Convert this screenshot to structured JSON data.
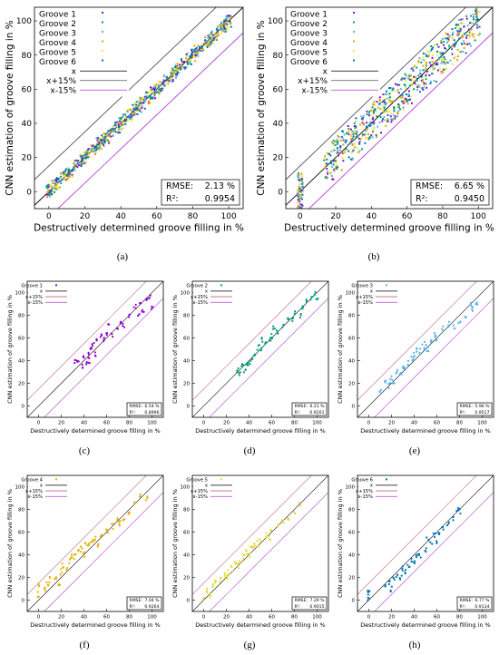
{
  "chart_data": [
    {
      "panel": "(a)",
      "type": "scatter",
      "xlabel": "Destructively determined groove filling in %",
      "ylabel": "CNN estimation of groove filling in %",
      "xlim": [
        -8,
        108
      ],
      "ylim": [
        -10,
        108
      ],
      "xticks": [
        "0",
        "20",
        "40",
        "60",
        "80",
        "100"
      ],
      "yticks": [
        "0",
        "20",
        "40",
        "60",
        "80",
        "100"
      ],
      "grid": false,
      "legend_position": "top-left",
      "series": [
        {
          "name": "Groove 1",
          "color": "#9400d3",
          "kind": "points"
        },
        {
          "name": "Groove 2",
          "color": "#009e73",
          "kind": "points"
        },
        {
          "name": "Groove 3",
          "color": "#56b4e9",
          "kind": "points"
        },
        {
          "name": "Groove 4",
          "color": "#e69f00",
          "kind": "points"
        },
        {
          "name": "Groove 5",
          "color": "#f0e442",
          "kind": "points"
        },
        {
          "name": "Groove 6",
          "color": "#0072b2",
          "kind": "points"
        },
        {
          "name": "x",
          "color": "#000000",
          "kind": "line",
          "offset": 0
        },
        {
          "name": "x+15%",
          "color": "#555555",
          "kind": "line",
          "offset": 15
        },
        {
          "name": "x-15%",
          "color": "#b040d0",
          "kind": "line",
          "offset": -15
        }
      ],
      "spread": 3.5,
      "x": [
        0,
        1,
        3,
        5,
        8,
        10,
        12,
        15,
        18,
        20,
        22,
        25,
        28,
        30,
        32,
        35,
        38,
        40,
        42,
        45,
        48,
        50,
        52,
        55,
        58,
        60,
        62,
        65,
        68,
        70,
        72,
        75,
        78,
        80,
        82,
        85,
        88,
        90,
        92,
        95,
        97,
        98,
        100
      ],
      "stats": {
        "rmse_label": "RMSE:",
        "rmse": "2.13 %",
        "r2_label": "R²:",
        "r2": "0.9954"
      }
    },
    {
      "panel": "(b)",
      "type": "scatter",
      "xlabel": "Destructively determined groove filling in %",
      "ylabel": "CNN estimation of groove filling in %",
      "xlim": [
        -8,
        108
      ],
      "ylim": [
        -10,
        108
      ],
      "xticks": [
        "0",
        "20",
        "40",
        "60",
        "80",
        "100"
      ],
      "yticks": [
        "0",
        "20",
        "40",
        "60",
        "80",
        "100"
      ],
      "grid": false,
      "legend_position": "top-left",
      "series": [
        {
          "name": "Groove 1",
          "color": "#9400d3",
          "kind": "points"
        },
        {
          "name": "Groove 2",
          "color": "#009e73",
          "kind": "points"
        },
        {
          "name": "Groove 3",
          "color": "#56b4e9",
          "kind": "points"
        },
        {
          "name": "Groove 4",
          "color": "#e69f00",
          "kind": "points"
        },
        {
          "name": "Groove 5",
          "color": "#f0e442",
          "kind": "points"
        },
        {
          "name": "Groove 6",
          "color": "#0072b2",
          "kind": "points"
        },
        {
          "name": "x",
          "color": "#000000",
          "kind": "line",
          "offset": 0
        },
        {
          "name": "x+15%",
          "color": "#555555",
          "kind": "line",
          "offset": 15
        },
        {
          "name": "x-15%",
          "color": "#b040d0",
          "kind": "line",
          "offset": -15
        }
      ],
      "spread": 11,
      "x": [
        0,
        0,
        0,
        0,
        15,
        18,
        20,
        22,
        25,
        28,
        30,
        32,
        35,
        38,
        40,
        42,
        45,
        48,
        50,
        52,
        55,
        58,
        60,
        62,
        65,
        68,
        70,
        72,
        75,
        78,
        80,
        82,
        85,
        88,
        90,
        92,
        95,
        98,
        100
      ],
      "stats": {
        "rmse_label": "RMSE:",
        "rmse": "6.65 %",
        "r2_label": "R²:",
        "r2": "0.9450"
      }
    },
    {
      "panel": "(c)",
      "type": "scatter",
      "xlabel": "Destructively determined groove filling in %",
      "ylabel": "CNN estimation of groove filling in %",
      "xlim": [
        -10,
        110
      ],
      "ylim": [
        -10,
        110
      ],
      "xticks": [
        "0",
        "20",
        "40",
        "60",
        "80",
        "100"
      ],
      "yticks": [
        "0",
        "20",
        "40",
        "60",
        "80",
        "100"
      ],
      "grid": false,
      "legend_position": "top-left",
      "series": [
        {
          "name": "Groove 1",
          "color": "#9400d3",
          "kind": "points"
        },
        {
          "name": "x",
          "color": "#000000",
          "kind": "line",
          "offset": 0
        },
        {
          "name": "x+15%",
          "color": "#c06080",
          "kind": "line",
          "offset": 15
        },
        {
          "name": "x-15%",
          "color": "#b040d0",
          "kind": "line",
          "offset": -15
        }
      ],
      "x": [
        32,
        35,
        38,
        40,
        42,
        44,
        45,
        46,
        48,
        50,
        52,
        55,
        58,
        60,
        62,
        65,
        70,
        72,
        75,
        80,
        85,
        88,
        90,
        92,
        95,
        98,
        100
      ],
      "y": [
        40,
        38,
        36,
        42,
        38,
        45,
        40,
        50,
        55,
        45,
        60,
        62,
        58,
        65,
        70,
        62,
        68,
        75,
        72,
        80,
        88,
        82,
        90,
        85,
        92,
        95,
        88
      ],
      "stats": {
        "rmse_label": "RMSE:",
        "rmse": "6.54 %",
        "r2_label": "R²:",
        "r2": "0.8996"
      }
    },
    {
      "panel": "(d)",
      "type": "scatter",
      "xlabel": "Destructively determined groove filling in %",
      "ylabel": "CNN estimation of groove filling in %",
      "xlim": [
        -10,
        110
      ],
      "ylim": [
        -10,
        110
      ],
      "xticks": [
        "0",
        "20",
        "40",
        "60",
        "80",
        "100"
      ],
      "yticks": [
        "0",
        "20",
        "40",
        "60",
        "80",
        "100"
      ],
      "grid": false,
      "legend_position": "top-left",
      "series": [
        {
          "name": "Groove 2",
          "color": "#009e73",
          "kind": "points"
        },
        {
          "name": "x",
          "color": "#000000",
          "kind": "line",
          "offset": 0
        },
        {
          "name": "x+15%",
          "color": "#c06080",
          "kind": "line",
          "offset": 15
        },
        {
          "name": "x-15%",
          "color": "#b040d0",
          "kind": "line",
          "offset": -15
        }
      ],
      "x": [
        30,
        32,
        34,
        36,
        38,
        40,
        42,
        45,
        48,
        50,
        52,
        55,
        58,
        60,
        62,
        65,
        70,
        75,
        78,
        80,
        85,
        88,
        90,
        95,
        98,
        100
      ],
      "y": [
        32,
        28,
        35,
        30,
        38,
        36,
        40,
        45,
        52,
        50,
        58,
        55,
        60,
        62,
        68,
        65,
        70,
        78,
        75,
        82,
        80,
        88,
        92,
        95,
        98,
        95
      ],
      "stats": {
        "rmse_label": "RMSE:",
        "rmse": "6.21 %",
        "r2_label": "R²:",
        "r2": "0.9201"
      }
    },
    {
      "panel": "(e)",
      "type": "scatter",
      "xlabel": "Destructively determined groove filling in %",
      "ylabel": "CNN estimation of groove filling in %",
      "xlim": [
        -10,
        110
      ],
      "ylim": [
        -10,
        110
      ],
      "xticks": [
        "0",
        "20",
        "40",
        "60",
        "80",
        "100"
      ],
      "yticks": [
        "0",
        "20",
        "40",
        "60",
        "80",
        "100"
      ],
      "grid": false,
      "legend_position": "top-left",
      "series": [
        {
          "name": "Groove 3",
          "color": "#56b4e9",
          "kind": "points"
        },
        {
          "name": "x",
          "color": "#000000",
          "kind": "line",
          "offset": 0
        },
        {
          "name": "x+15%",
          "color": "#c06080",
          "kind": "line",
          "offset": 15
        },
        {
          "name": "x-15%",
          "color": "#b040d0",
          "kind": "line",
          "offset": -15
        }
      ],
      "x": [
        10,
        15,
        18,
        20,
        22,
        25,
        28,
        30,
        32,
        35,
        38,
        40,
        42,
        45,
        48,
        50,
        52,
        55,
        58,
        60,
        65,
        70,
        75,
        80,
        85,
        90,
        92,
        95
      ],
      "y": [
        12,
        20,
        18,
        25,
        22,
        30,
        28,
        35,
        32,
        38,
        42,
        45,
        50,
        48,
        52,
        55,
        50,
        58,
        62,
        60,
        68,
        72,
        70,
        75,
        80,
        90,
        85,
        92
      ],
      "stats": {
        "rmse_label": "RMSE:",
        "rmse": "5.96 %",
        "r2_label": "R²:",
        "r2": "0.9517"
      }
    },
    {
      "panel": "(f)",
      "type": "scatter",
      "xlabel": "Destructively determined groove filling in %",
      "ylabel": "CNN estimation of groove filling in %",
      "xlim": [
        -10,
        110
      ],
      "ylim": [
        -10,
        110
      ],
      "xticks": [
        "0",
        "20",
        "40",
        "60",
        "80",
        "100"
      ],
      "yticks": [
        "0",
        "20",
        "40",
        "60",
        "80",
        "100"
      ],
      "grid": false,
      "legend_position": "top-left",
      "series": [
        {
          "name": "Groove 4",
          "color": "#e6b000",
          "kind": "points"
        },
        {
          "name": "x",
          "color": "#000000",
          "kind": "line",
          "offset": 0
        },
        {
          "name": "x+15%",
          "color": "#c06080",
          "kind": "line",
          "offset": 15
        },
        {
          "name": "x-15%",
          "color": "#b040d0",
          "kind": "line",
          "offset": -15
        }
      ],
      "x": [
        0,
        0,
        5,
        8,
        10,
        15,
        18,
        20,
        22,
        25,
        28,
        30,
        32,
        35,
        38,
        40,
        42,
        45,
        48,
        50,
        52,
        55,
        60,
        65,
        70,
        72,
        75,
        80,
        85,
        90,
        95
      ],
      "y": [
        5,
        12,
        10,
        15,
        18,
        20,
        15,
        25,
        30,
        28,
        35,
        40,
        38,
        42,
        45,
        40,
        48,
        50,
        52,
        55,
        48,
        58,
        60,
        65,
        70,
        68,
        72,
        78,
        85,
        92,
        90
      ],
      "stats": {
        "rmse_label": "RMSE:",
        "rmse": "7.04 %",
        "r2_label": "R²:",
        "r2": "0.9264"
      }
    },
    {
      "panel": "(g)",
      "type": "scatter",
      "xlabel": "Destructively determined groove filling in %",
      "ylabel": "CNN estimation of groove filling in %",
      "xlim": [
        -10,
        110
      ],
      "ylim": [
        -10,
        110
      ],
      "xticks": [
        "0",
        "20",
        "40",
        "60",
        "80",
        "100"
      ],
      "yticks": [
        "0",
        "20",
        "40",
        "60",
        "80",
        "100"
      ],
      "grid": false,
      "legend_position": "top-left",
      "series": [
        {
          "name": "Groove 5",
          "color": "#e8d830",
          "kind": "points"
        },
        {
          "name": "x",
          "color": "#000000",
          "kind": "line",
          "offset": 0
        },
        {
          "name": "x+15%",
          "color": "#c06080",
          "kind": "line",
          "offset": 15
        },
        {
          "name": "x-15%",
          "color": "#b040d0",
          "kind": "line",
          "offset": -15
        }
      ],
      "x": [
        0,
        2,
        5,
        8,
        10,
        15,
        18,
        20,
        22,
        25,
        28,
        30,
        32,
        35,
        38,
        40,
        42,
        45,
        48,
        50,
        55,
        58,
        60,
        65,
        70,
        75,
        80,
        85
      ],
      "y": [
        2,
        8,
        5,
        12,
        15,
        18,
        22,
        20,
        25,
        28,
        32,
        30,
        35,
        38,
        42,
        40,
        45,
        48,
        50,
        52,
        58,
        55,
        60,
        65,
        70,
        72,
        78,
        85
      ],
      "stats": {
        "rmse_label": "RMSE:",
        "rmse": "7.29 %",
        "r2_label": "R²:",
        "r2": "0.9015"
      }
    },
    {
      "panel": "(h)",
      "type": "scatter",
      "xlabel": "Destructively determined groove filling in %",
      "ylabel": "CNN estimation of groove filling in %",
      "xlim": [
        -10,
        110
      ],
      "ylim": [
        -10,
        110
      ],
      "xticks": [
        "0",
        "20",
        "40",
        "60",
        "80",
        "100"
      ],
      "yticks": [
        "0",
        "20",
        "40",
        "60",
        "80",
        "100"
      ],
      "grid": false,
      "legend_position": "top-left",
      "series": [
        {
          "name": "Groove 6",
          "color": "#0072b2",
          "kind": "points"
        },
        {
          "name": "x",
          "color": "#000000",
          "kind": "line",
          "offset": 0
        },
        {
          "name": "x+15%",
          "color": "#c06080",
          "kind": "line",
          "offset": 15
        },
        {
          "name": "x-15%",
          "color": "#b040d0",
          "kind": "line",
          "offset": -15
        }
      ],
      "x": [
        0,
        0,
        0,
        15,
        18,
        20,
        22,
        25,
        28,
        30,
        32,
        35,
        38,
        40,
        42,
        45,
        50,
        52,
        55,
        58,
        60,
        62,
        65,
        70,
        75,
        78,
        80
      ],
      "y": [
        2,
        5,
        8,
        12,
        15,
        10,
        18,
        22,
        20,
        28,
        25,
        30,
        35,
        32,
        38,
        40,
        45,
        55,
        50,
        58,
        52,
        60,
        62,
        68,
        72,
        80,
        78
      ],
      "stats": {
        "rmse_label": "RMSE:",
        "rmse": "6.77 %",
        "r2_label": "R²:",
        "r2": "0.9134"
      }
    }
  ]
}
